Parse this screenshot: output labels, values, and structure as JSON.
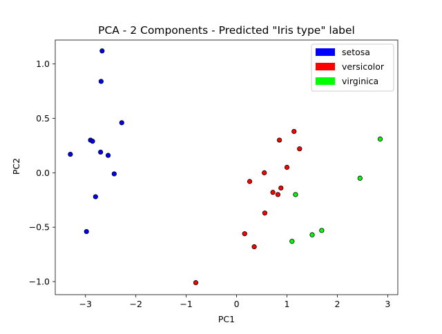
{
  "chart_data": {
    "type": "scatter",
    "title": "PCA - 2 Components - Predicted \"Iris type\" label",
    "xlabel": "PC1",
    "ylabel": "PC2",
    "xlim": [
      -3.6,
      3.2
    ],
    "ylim": [
      -1.12,
      1.22
    ],
    "xticks": [
      -3,
      -2,
      -1,
      0,
      1,
      2,
      3
    ],
    "xtick_labels": [
      "−3",
      "−2",
      "−1",
      "0",
      "1",
      "2",
      "3"
    ],
    "yticks": [
      -1.0,
      -0.5,
      0.0,
      0.5,
      1.0
    ],
    "ytick_labels": [
      "−1.0",
      "−0.5",
      "0.0",
      "0.5",
      "1.0"
    ],
    "grid": false,
    "legend_position": "top-right",
    "series": [
      {
        "name": "setosa",
        "color": "#0000ff",
        "points": [
          [
            -2.67,
            1.12
          ],
          [
            -2.69,
            0.84
          ],
          [
            -2.28,
            0.46
          ],
          [
            -2.9,
            0.3
          ],
          [
            -2.86,
            0.29
          ],
          [
            -3.3,
            0.17
          ],
          [
            -2.7,
            0.19
          ],
          [
            -2.55,
            0.16
          ],
          [
            -2.43,
            -0.01
          ],
          [
            -2.8,
            -0.22
          ],
          [
            -2.98,
            -0.54
          ]
        ]
      },
      {
        "name": "versicolor",
        "color": "#ff0000",
        "points": [
          [
            1.14,
            0.38
          ],
          [
            1.25,
            0.22
          ],
          [
            0.85,
            0.3
          ],
          [
            1.0,
            0.05
          ],
          [
            0.55,
            0.0
          ],
          [
            0.26,
            -0.08
          ],
          [
            0.88,
            -0.14
          ],
          [
            0.72,
            -0.18
          ],
          [
            0.82,
            -0.2
          ],
          [
            0.56,
            -0.37
          ],
          [
            0.16,
            -0.56
          ],
          [
            0.35,
            -0.68
          ],
          [
            -0.81,
            -1.01
          ]
        ]
      },
      {
        "name": "virginica",
        "color": "#00ff00",
        "points": [
          [
            2.85,
            0.31
          ],
          [
            2.45,
            -0.05
          ],
          [
            1.17,
            -0.2
          ],
          [
            1.69,
            -0.53
          ],
          [
            1.5,
            -0.57
          ],
          [
            1.1,
            -0.63
          ]
        ]
      }
    ]
  }
}
